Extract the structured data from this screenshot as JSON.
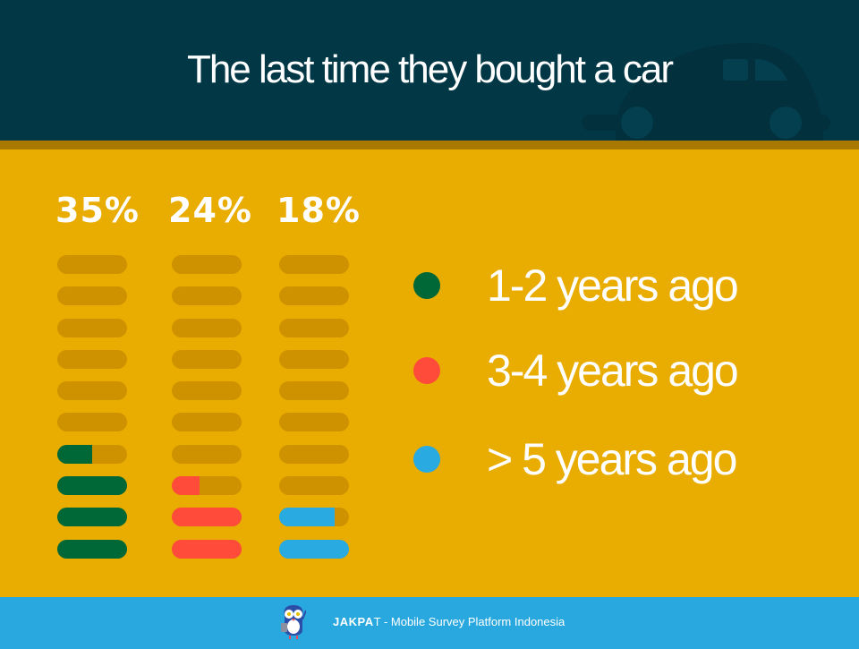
{
  "header": {
    "title": "The last time they bought a car",
    "background_icon": "car-icon"
  },
  "colors": {
    "header_bg": "#023846",
    "stripe": "#A87800",
    "main_bg": "#E9AC00",
    "bar_track": "#CE9200",
    "green": "#006837",
    "red": "#FF4B3A",
    "blue": "#29AAE1",
    "footer_bg": "#29A8DF"
  },
  "chart_data": {
    "type": "bar",
    "title": "The last time they bought a car",
    "categories": [
      "1-2 years ago",
      "3-4 years ago",
      "> 5 years ago"
    ],
    "values": [
      35,
      24,
      18
    ],
    "unit": "%",
    "value_labels": [
      "35%",
      "24%",
      "18%"
    ],
    "colors": [
      "#006837",
      "#FF4B3A",
      "#29AAE1"
    ],
    "style": "pictograph of 10 stacked rounded bars per column, each bar = 10%, filled from bottom",
    "legend_position": "right",
    "ylim": [
      0,
      100
    ]
  },
  "columns": [
    {
      "label": "35%",
      "color": "#006837",
      "value": 35
    },
    {
      "label": "24%",
      "color": "#FF4B3A",
      "value": 24
    },
    {
      "label": "18%",
      "color": "#29AAE1",
      "value": 18
    }
  ],
  "legend": [
    {
      "label": "1-2 years ago",
      "color": "#006837",
      "icon": "dot-icon"
    },
    {
      "label": "3-4 years ago",
      "color": "#FF4B3A",
      "icon": "dot-icon"
    },
    {
      "label": "> 5 years ago",
      "color": "#29AAE1",
      "icon": "dot-icon"
    }
  ],
  "footer": {
    "logo": "owl-mascot-icon",
    "brand_bold": "JAKPA",
    "brand_light": "T",
    "tagline": " - Mobile Survey Platform Indonesia"
  }
}
